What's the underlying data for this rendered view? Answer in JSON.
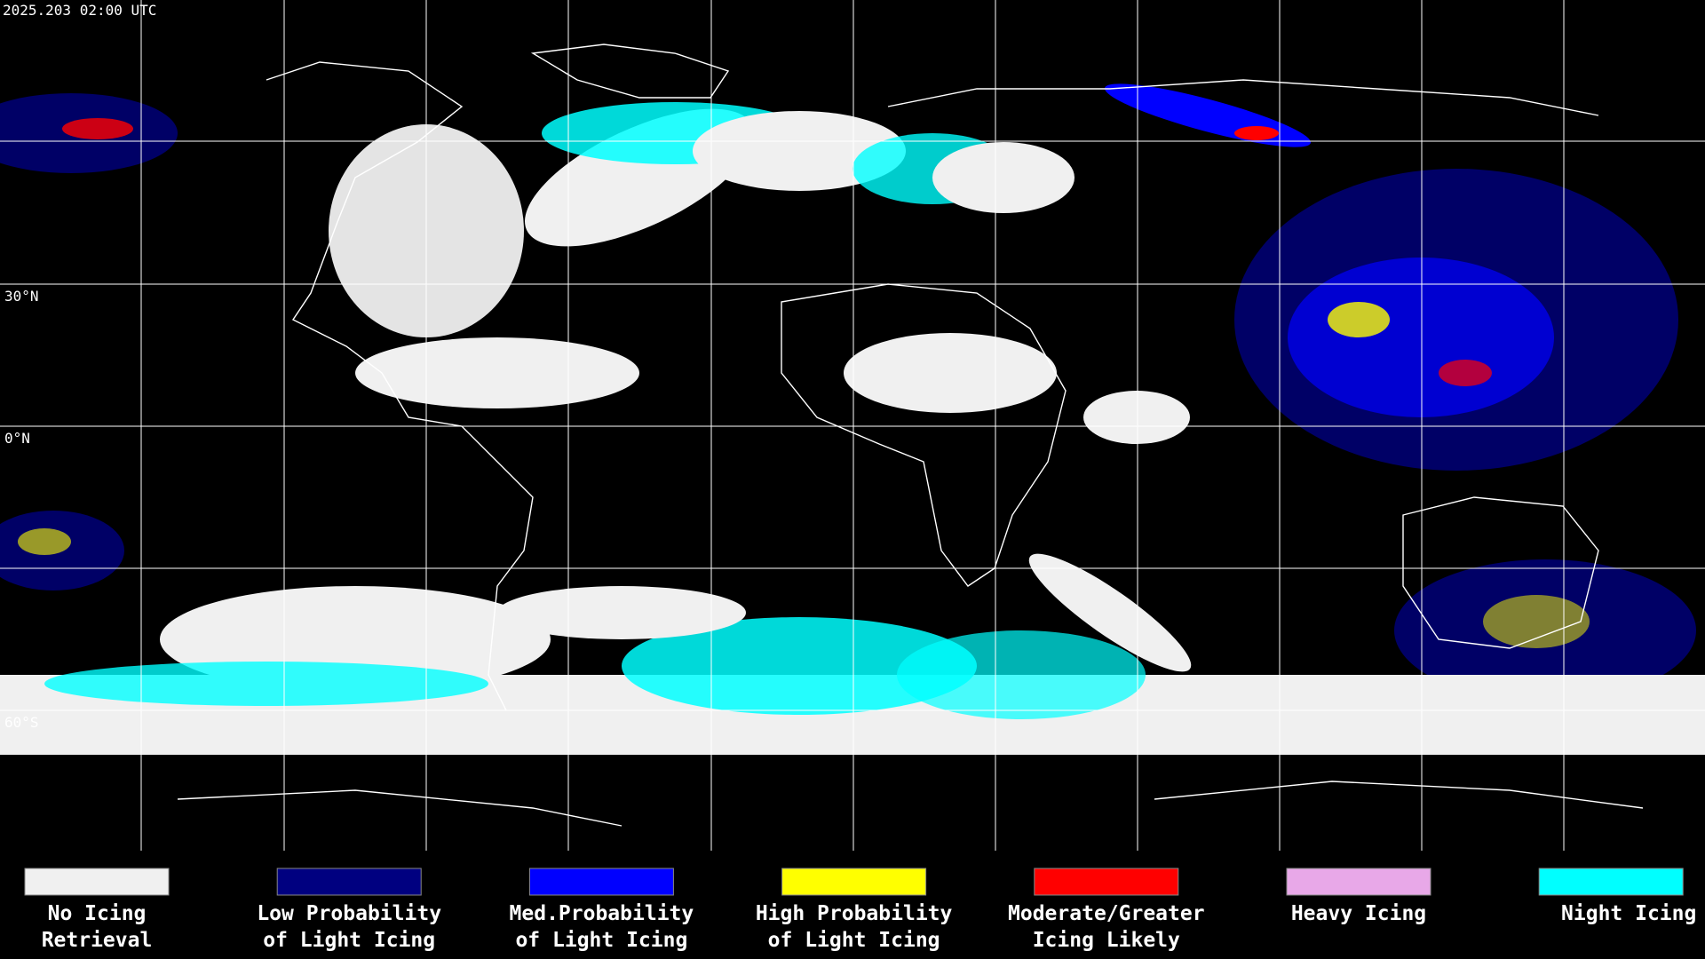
{
  "header": {
    "timestamp": "2025.203 02:00 UTC"
  },
  "latitude_labels": [
    "30°N",
    "0°N",
    "60°S"
  ],
  "legend": [
    {
      "lines": [
        "No Icing",
        "Retrieval"
      ],
      "color": "#f0f0f0"
    },
    {
      "lines": [
        "Low Probability",
        "of Light Icing"
      ],
      "color": "#000080"
    },
    {
      "lines": [
        "Med.Probability",
        "of Light Icing"
      ],
      "color": "#0000ff"
    },
    {
      "lines": [
        "High Probability",
        "of Light Icing"
      ],
      "color": "#ffff00"
    },
    {
      "lines": [
        "Moderate/Greater",
        "Icing Likely"
      ],
      "color": "#ff0000"
    },
    {
      "lines": [
        "Heavy Icing"
      ],
      "color": "#e8a8e8"
    },
    {
      "lines": [
        "Night Icing"
      ],
      "color": "#00ffff"
    }
  ]
}
